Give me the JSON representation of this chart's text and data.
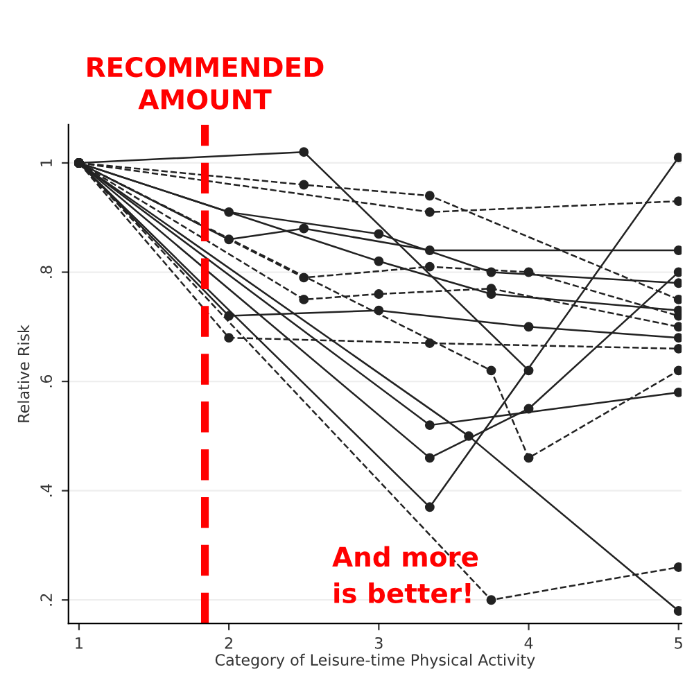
{
  "chart_data": {
    "type": "line",
    "xlabel": "Category of Leisure-time Physical Activity",
    "ylabel": "Relative Risk",
    "xlim": [
      0.93,
      5.02
    ],
    "ylim": [
      0.157,
      1.07
    ],
    "xticks": [
      1,
      2,
      3,
      4,
      5
    ],
    "yticks": [
      {
        "value": 0.2,
        "label": ".2"
      },
      {
        "value": 0.4,
        "label": ".4"
      },
      {
        "value": 0.6,
        "label": ".6"
      },
      {
        "value": 0.8,
        "label": ".8"
      },
      1
    ],
    "grid": "y",
    "marker": "circle",
    "series": [
      {
        "color": "#222222",
        "line_style": "solid",
        "x": [
          1,
          2.5,
          4
        ],
        "values": [
          1,
          1.02,
          0.62
        ]
      },
      {
        "color": "#222222",
        "line_style": "dashed",
        "x": [
          1,
          2.5,
          3.34,
          5
        ],
        "values": [
          1,
          0.96,
          0.94,
          0.75
        ]
      },
      {
        "color": "#222222",
        "line_style": "solid",
        "x": [
          1,
          2,
          3,
          3.75,
          5
        ],
        "values": [
          1,
          0.91,
          0.87,
          0.8,
          0.78
        ]
      },
      {
        "color": "#222222",
        "line_style": "solid",
        "x": [
          1,
          2,
          2.5,
          3.34,
          5
        ],
        "values": [
          1,
          0.86,
          0.88,
          0.84,
          0.84
        ]
      },
      {
        "color": "#222222",
        "line_style": "dashed",
        "x": [
          1,
          2.5,
          3.34,
          4,
          5
        ],
        "values": [
          1,
          0.79,
          0.81,
          0.8,
          0.72
        ]
      },
      {
        "color": "#222222",
        "line_style": "dashed",
        "x": [
          1,
          2.5,
          3,
          3.75,
          5
        ],
        "values": [
          1,
          0.75,
          0.76,
          0.77,
          0.7
        ]
      },
      {
        "color": "#222222",
        "line_style": "solid",
        "x": [
          1,
          2,
          3,
          4,
          5
        ],
        "values": [
          1,
          0.72,
          0.73,
          0.7,
          0.68
        ]
      },
      {
        "color": "#222222",
        "line_style": "dashed",
        "x": [
          1,
          2,
          3.34,
          5
        ],
        "values": [
          1,
          0.68,
          0.67,
          0.66
        ]
      },
      {
        "color": "#222222",
        "line_style": "solid",
        "x": [
          1,
          3.34,
          4,
          5
        ],
        "values": [
          1,
          0.46,
          0.55,
          0.8
        ]
      },
      {
        "color": "#222222",
        "line_style": "solid",
        "x": [
          1,
          3.34,
          5
        ],
        "values": [
          1,
          0.37,
          1.01
        ]
      },
      {
        "color": "#222222",
        "line_style": "solid",
        "x": [
          1,
          3.34,
          5
        ],
        "values": [
          1,
          0.52,
          0.58
        ]
      },
      {
        "color": "#222222",
        "line_style": "dashed",
        "x": [
          1,
          3.75,
          5
        ],
        "values": [
          1,
          0.2,
          0.26
        ]
      },
      {
        "color": "#222222",
        "line_style": "solid",
        "x": [
          1,
          3.6,
          5
        ],
        "values": [
          1,
          0.5,
          0.18
        ]
      },
      {
        "color": "#222222",
        "line_style": "dashed",
        "x": [
          1,
          3.75,
          4,
          5
        ],
        "values": [
          1,
          0.62,
          0.46,
          0.62
        ]
      },
      {
        "color": "#222222",
        "line_style": "dashed",
        "x": [
          1,
          3.34,
          5
        ],
        "values": [
          1,
          0.91,
          0.93
        ]
      },
      {
        "color": "#222222",
        "line_style": "solid",
        "x": [
          1,
          3,
          3.75,
          5
        ],
        "values": [
          1,
          0.82,
          0.76,
          0.73
        ]
      }
    ],
    "ref_lines": [
      {
        "axis": "x",
        "value": 1.84,
        "label": "RECOMMENDED\nAMOUNT",
        "color": "#ff0000",
        "line_style": "dashed"
      }
    ],
    "annotations": [
      "And more\nis better!"
    ]
  }
}
